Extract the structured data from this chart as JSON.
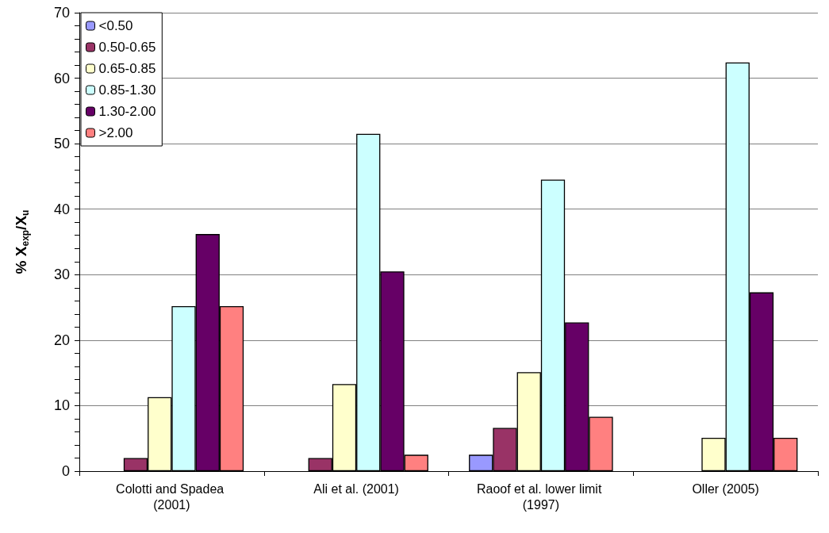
{
  "chart_data": {
    "type": "bar",
    "ylabel": "% X$_{exp}$/X$_{u}$",
    "categories": [
      "Colotti and Spadea (2001)",
      "Ali et al. (2001)",
      "Raoof et al. lower limit (1997)",
      "Oller (2005)"
    ],
    "series": [
      {
        "name": "<0.50",
        "color": "#9999ff",
        "values": [
          null,
          null,
          2.5,
          null
        ]
      },
      {
        "name": "0.50-0.65",
        "color": "#993366",
        "values": [
          2.0,
          2.0,
          6.6,
          null
        ]
      },
      {
        "name": "0.65-0.85",
        "color": "#ffffcc",
        "values": [
          11.3,
          13.3,
          15.1,
          5.1
        ]
      },
      {
        "name": "0.85-1.30",
        "color": "#ccffff",
        "values": [
          25.2,
          51.5,
          44.5,
          62.4
        ]
      },
      {
        "name": "1.30-2.00",
        "color": "#660066",
        "values": [
          36.2,
          30.5,
          22.7,
          27.3
        ]
      },
      {
        "name": ">2.00",
        "color": "#ff8080",
        "values": [
          25.2,
          2.5,
          8.3,
          5.1
        ]
      }
    ],
    "ylim": [
      0,
      70
    ],
    "yticks": [
      0,
      {
        "value": 2,
        "label": null
      },
      {
        "value": 4,
        "label": null
      },
      {
        "value": 6,
        "label": null
      },
      {
        "value": 8,
        "label": null
      },
      10,
      {
        "value": 12,
        "label": null
      },
      {
        "value": 14,
        "label": null
      },
      {
        "value": 16,
        "label": null
      },
      {
        "value": 18,
        "label": null
      },
      20,
      {
        "value": 22,
        "label": null
      },
      {
        "value": 24,
        "label": null
      },
      {
        "value": 26,
        "label": null
      },
      {
        "value": 28,
        "label": null
      },
      30,
      {
        "value": 32,
        "label": null
      },
      {
        "value": 34,
        "label": null
      },
      {
        "value": 36,
        "label": null
      },
      {
        "value": 38,
        "label": null
      },
      40,
      {
        "value": 42,
        "label": null
      },
      {
        "value": 44,
        "label": null
      },
      {
        "value": 46,
        "label": null
      },
      {
        "value": 48,
        "label": null
      },
      50,
      {
        "value": 52,
        "label": null
      },
      {
        "value": 54,
        "label": null
      },
      {
        "value": 56,
        "label": null
      },
      {
        "value": 58,
        "label": null
      },
      60,
      {
        "value": 62,
        "label": null
      },
      {
        "value": 64,
        "label": null
      },
      {
        "value": 66,
        "label": null
      },
      {
        "value": 68,
        "label": null
      },
      70
    ],
    "grid": "y",
    "legend": "top left"
  }
}
